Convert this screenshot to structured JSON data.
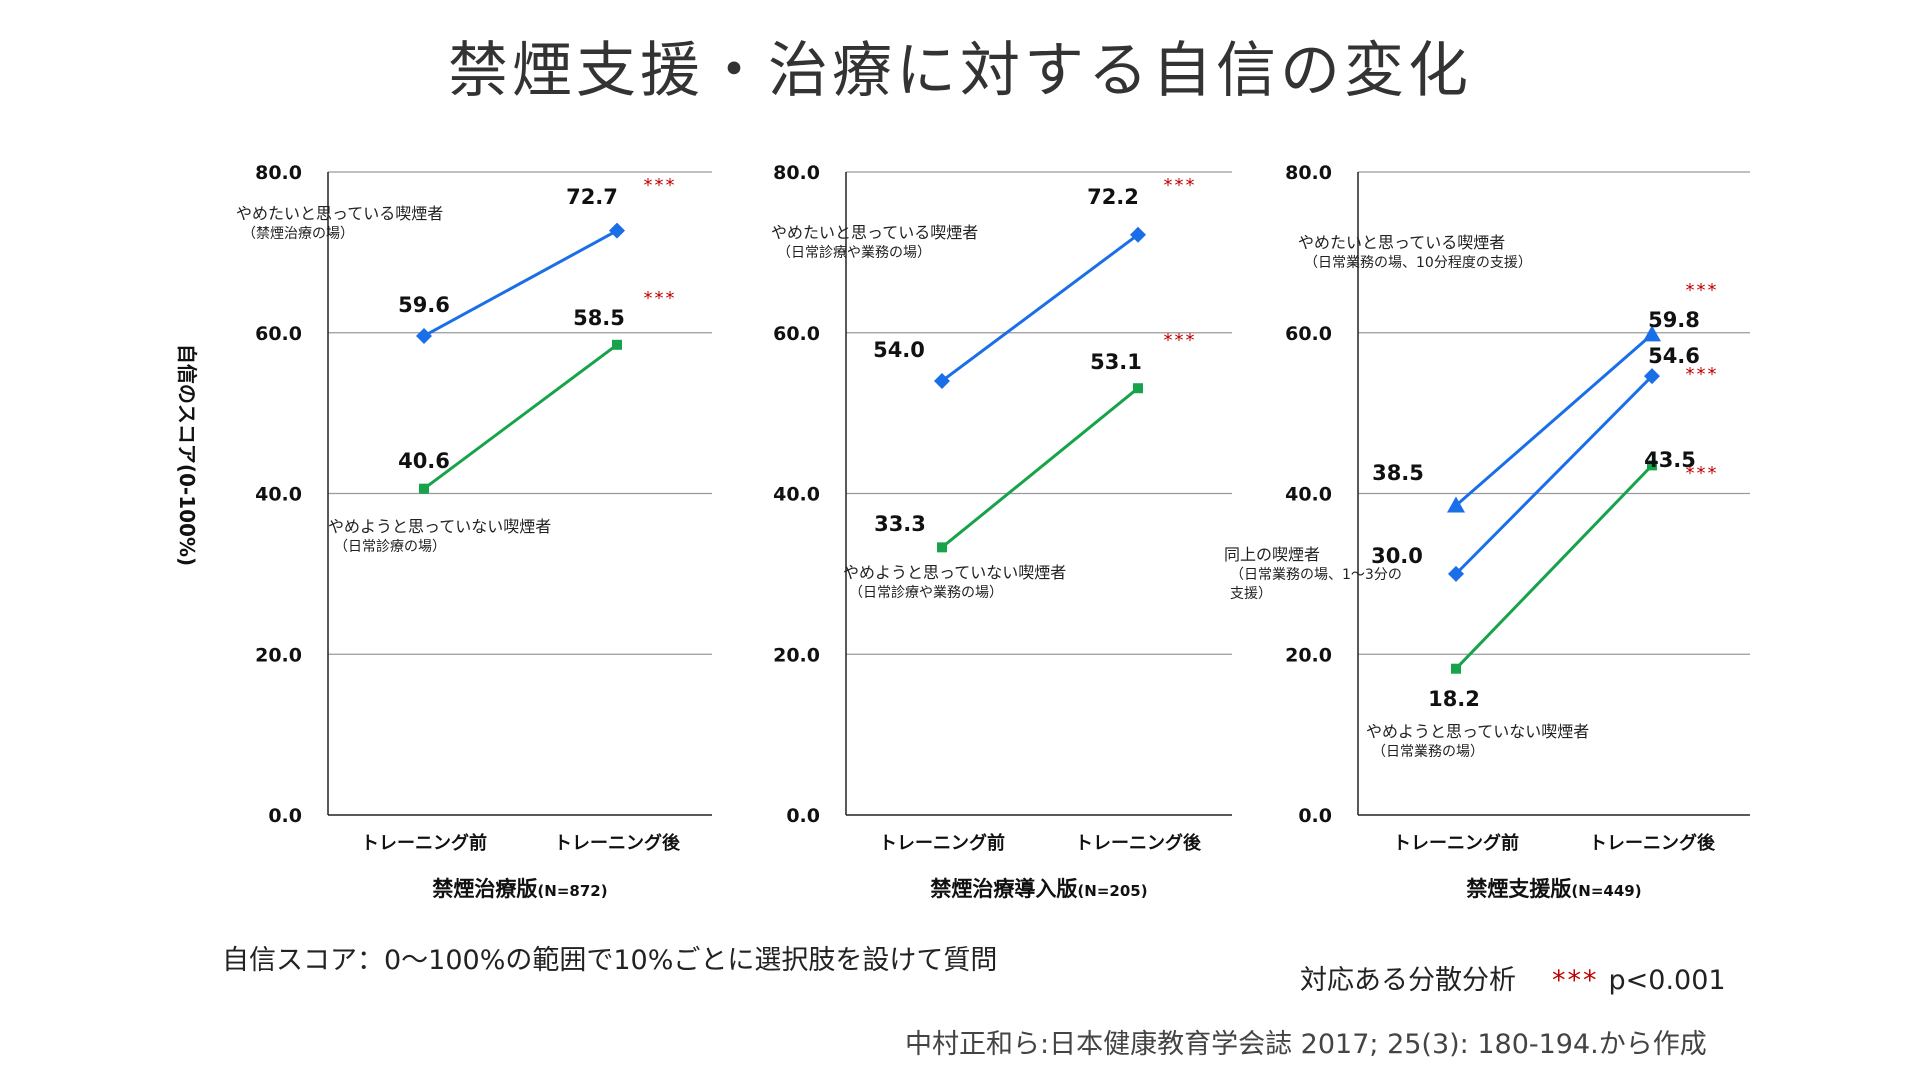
{
  "title": "禁煙支援・治療に対する自信の変化",
  "y_axis_label": "自信のスコア(0-100%)",
  "notes": {
    "method": "自信スコア：0〜100%の範囲で10%ごとに選択肢を設けて質問",
    "analysis_label": "対応ある分散分析",
    "analysis_stars": "***",
    "analysis_p": "p<0.001",
    "source": "中村正和ら:日本健康教育学会誌 2017; 25(3): 180-194.から作成"
  },
  "chart_data": [
    {
      "type": "line",
      "title": "禁煙治療版",
      "n_label": "(N=872)",
      "categories": [
        "トレーニング前",
        "トレーニング後"
      ],
      "ylim": [
        0,
        80
      ],
      "yticks": [
        "0.0",
        "20.0",
        "40.0",
        "60.0",
        "80.0"
      ],
      "grid": true,
      "series": [
        {
          "values": [
            59.6,
            72.7
          ],
          "labels": [
            "59.6",
            "72.7"
          ],
          "color": "#1a6fe8",
          "marker": "diamond",
          "significance": "***",
          "annotation": [
            "やめたいと思っている喫煙者",
            "（禁煙治療の場）"
          ]
        },
        {
          "values": [
            40.6,
            58.5
          ],
          "labels": [
            "40.6",
            "58.5"
          ],
          "color": "#16a34a",
          "marker": "square",
          "significance": "***",
          "annotation": [
            "やめようと思っていない喫煙者",
            "（日常診療の場）"
          ]
        }
      ]
    },
    {
      "type": "line",
      "title": "禁煙治療導入版",
      "n_label": "(N=205)",
      "categories": [
        "トレーニング前",
        "トレーニング後"
      ],
      "ylim": [
        0,
        80
      ],
      "yticks": [
        "0.0",
        "20.0",
        "40.0",
        "60.0",
        "80.0"
      ],
      "grid": true,
      "series": [
        {
          "values": [
            54.0,
            72.2
          ],
          "labels": [
            "54.0",
            "72.2"
          ],
          "color": "#1a6fe8",
          "marker": "diamond",
          "significance": "***",
          "annotation": [
            "やめたいと思っている喫煙者",
            "（日常診療や業務の場）"
          ]
        },
        {
          "values": [
            33.3,
            53.1
          ],
          "labels": [
            "33.3",
            "53.1"
          ],
          "color": "#16a34a",
          "marker": "square",
          "significance": "***",
          "annotation": [
            "やめようと思っていない喫煙者",
            "（日常診療や業務の場）"
          ]
        }
      ]
    },
    {
      "type": "line",
      "title": "禁煙支援版",
      "n_label": "(N=449)",
      "categories": [
        "トレーニング前",
        "トレーニング後"
      ],
      "ylim": [
        0,
        80
      ],
      "yticks": [
        "0.0",
        "20.0",
        "40.0",
        "60.0",
        "80.0"
      ],
      "grid": true,
      "series": [
        {
          "values": [
            38.5,
            59.8
          ],
          "labels": [
            "38.5",
            "59.8"
          ],
          "color": "#1a6fe8",
          "marker": "triangle",
          "significance": "***",
          "annotation": [
            "やめたいと思っている喫煙者",
            "（日常業務の場、10分程度の支援）"
          ]
        },
        {
          "values": [
            30.0,
            54.6
          ],
          "labels": [
            "30.0",
            "54.6"
          ],
          "color": "#1a6fe8",
          "marker": "diamond",
          "significance": "***",
          "annotation": [
            "同上の喫煙者",
            "（日常業務の場、1〜3分の",
            "支援）"
          ]
        },
        {
          "values": [
            18.2,
            43.5
          ],
          "labels": [
            "18.2",
            "43.5"
          ],
          "color": "#16a34a",
          "marker": "square",
          "significance": "***",
          "annotation": [
            "やめようと思っていない喫煙者",
            "（日常業務の場）"
          ]
        }
      ]
    }
  ]
}
